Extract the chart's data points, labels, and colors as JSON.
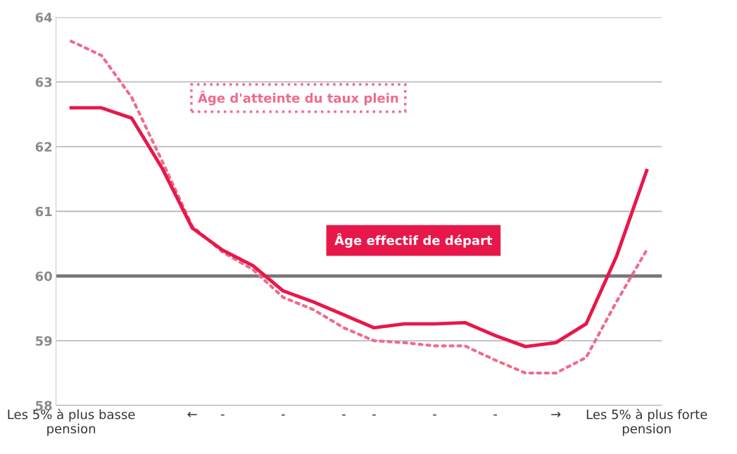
{
  "chart_data": {
    "type": "line",
    "categories": [
      "Les 5% à plus basse\npension",
      null,
      null,
      null,
      "←",
      "-",
      null,
      "-",
      null,
      "-",
      "-",
      null,
      "-",
      null,
      "-",
      null,
      "→",
      null,
      null,
      "Les 5% à plus forte\npension"
    ],
    "series": [
      {
        "name": "Âge d'atteinte du taux plein",
        "color": "#f06b8c",
        "line_style": "dotted",
        "values": [
          63.63,
          63.41,
          62.76,
          61.78,
          60.77,
          60.37,
          60.1,
          59.67,
          59.48,
          59.2,
          59.0,
          58.97,
          58.92,
          58.92,
          58.7,
          58.5,
          58.5,
          58.74,
          59.6,
          60.4
        ]
      },
      {
        "name": "Âge effectif de départ",
        "color": "#e8174a",
        "line_style": "solid",
        "values": [
          62.6,
          62.6,
          62.44,
          61.67,
          60.74,
          60.4,
          60.16,
          59.77,
          59.6,
          59.4,
          59.2,
          59.26,
          59.26,
          59.28,
          59.08,
          58.91,
          58.97,
          59.26,
          60.3,
          61.63
        ]
      }
    ],
    "ylim": [
      58,
      64
    ],
    "yticks": [
      58,
      59,
      60,
      61,
      62,
      63,
      64
    ],
    "grid": "y",
    "legend": false,
    "marker": "none",
    "ref_lines": [
      {
        "axis": "y",
        "value": 60,
        "color": "#777777"
      }
    ]
  }
}
